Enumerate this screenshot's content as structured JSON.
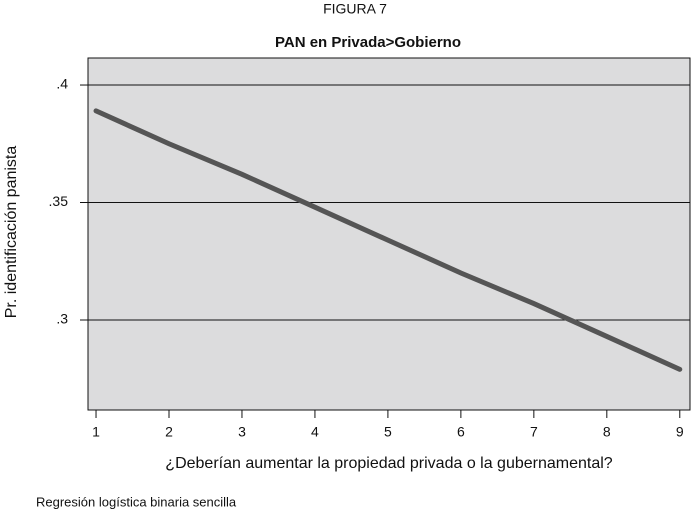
{
  "chart_data": {
    "type": "line",
    "figure_label": "FIGURA 7",
    "title": "PAN en Privada>Gobierno",
    "x_label": "¿Deberían aumentar la propiedad privada o la gubernamental?",
    "y_label": "Pr. identificación panista",
    "note": "Regresión logística binaria sencilla",
    "x": [
      1,
      2,
      3,
      4,
      5,
      6,
      7,
      8,
      9
    ],
    "series": [
      {
        "color": "#555555",
        "values": [
          0.389,
          0.375,
          0.362,
          0.348,
          0.334,
          0.32,
          0.307,
          0.293,
          0.279
        ]
      }
    ],
    "xlim": [
      0.89,
      9.14
    ],
    "xticks": [
      1,
      2,
      3,
      4,
      5,
      6,
      7,
      8,
      9
    ],
    "ylim": [
      0.2617,
      0.4115
    ],
    "yticks": [
      {
        "value": 0.3,
        "label": ".3"
      },
      {
        "value": 0.35,
        "label": ".35"
      },
      {
        "value": 0.4,
        "label": ".4"
      }
    ],
    "grid": true
  }
}
